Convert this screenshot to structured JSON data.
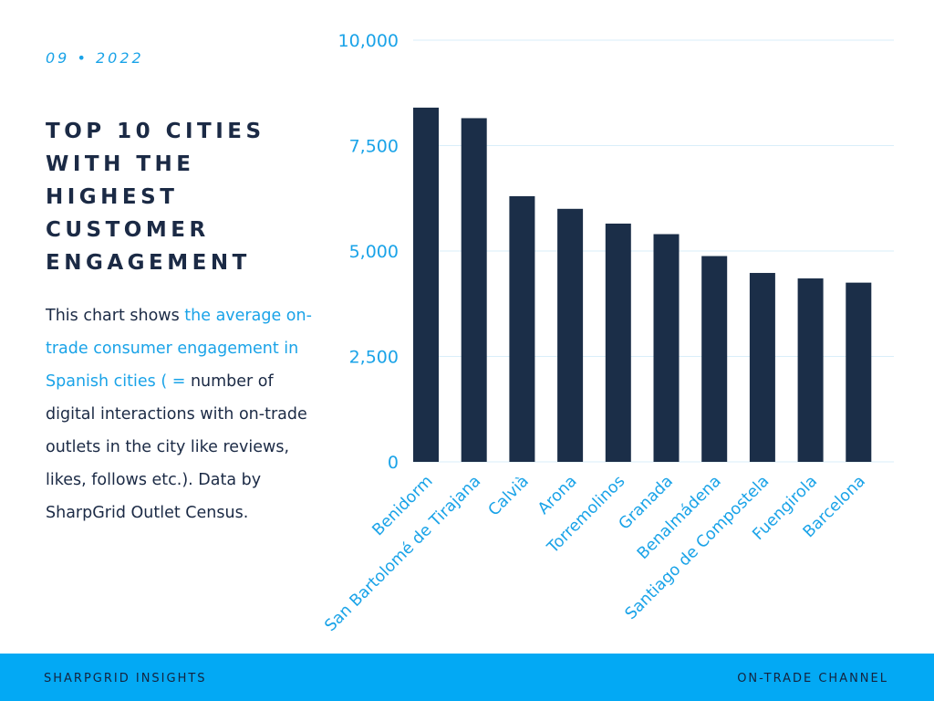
{
  "header": {
    "date": "09 • 2022",
    "title": "Top 10 cities with the highest customer engagement"
  },
  "description": {
    "part1": "This chart shows ",
    "highlight": "the average on-trade consumer engagement in Spanish cities ( = ",
    "part2": "number of digital interactions with on-trade outlets in the city like reviews, likes, follows etc.). Data by SharpGrid Outlet Census."
  },
  "footer": {
    "left": "SharpGrid Insights",
    "right": "On-Trade Channel"
  },
  "colors": {
    "bar": "#1b2e48",
    "accent": "#1aa3e8",
    "footer": "#03a9f4",
    "text": "#1b2a45",
    "grid": "#d9eef9"
  },
  "chart_data": {
    "type": "bar",
    "categories": [
      "Benidorm",
      "San Bartolomé de Tirajana",
      "Calvià",
      "Arona",
      "Torremolinos",
      "Granada",
      "Benalmádena",
      "Santiago de Compostela",
      "Fuengirola",
      "Barcelona"
    ],
    "values": [
      8400,
      8150,
      6300,
      6000,
      5650,
      5400,
      4880,
      4480,
      4350,
      4250
    ],
    "ylim": [
      0,
      10000
    ],
    "yticks": [
      0,
      2500,
      5000,
      7500,
      10000
    ],
    "ytick_labels": [
      "0",
      "2,500",
      "5,000",
      "7,500",
      "10,000"
    ],
    "grid": true,
    "title": "",
    "xlabel": "",
    "ylabel": ""
  }
}
